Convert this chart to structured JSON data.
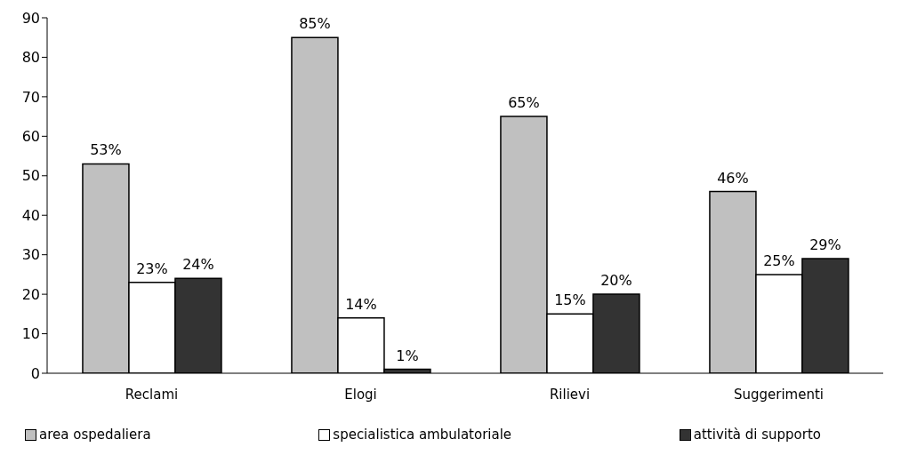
{
  "chart_data": {
    "type": "bar",
    "categories": [
      "Reclami",
      "Elogi",
      "Rilievi",
      "Suggerimenti"
    ],
    "series": [
      {
        "name": "area ospedaliera",
        "color": "#c0c0c0",
        "values": [
          53,
          85,
          65,
          46
        ],
        "value_labels": [
          "53%",
          "85%",
          "65%",
          "46%"
        ]
      },
      {
        "name": "specialistica ambulatoriale",
        "color": "#ffffff",
        "values": [
          23,
          14,
          15,
          25
        ],
        "value_labels": [
          "23%",
          "14%",
          "15%",
          "25%"
        ]
      },
      {
        "name": "attività di supporto",
        "color": "#333333",
        "values": [
          24,
          1,
          20,
          29
        ],
        "value_labels": [
          "24%",
          "1%",
          "20%",
          "29%"
        ]
      }
    ],
    "ylim": [
      0,
      90
    ],
    "yticks": [
      0,
      10,
      20,
      30,
      40,
      50,
      60,
      70,
      80,
      90
    ],
    "grid": false,
    "legend": "bottom"
  }
}
